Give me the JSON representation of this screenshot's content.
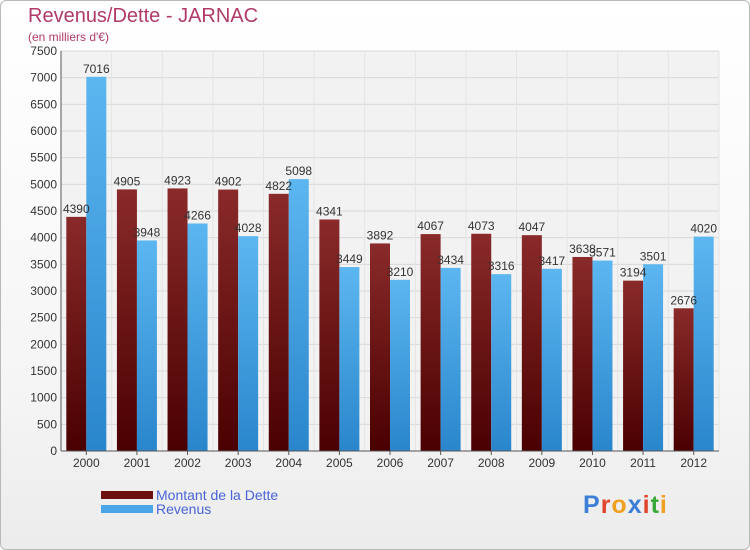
{
  "header": {
    "title": "Revenus/Dette - JARNAC",
    "subtitle": "(en milliers d'€)"
  },
  "chart_data": {
    "type": "bar",
    "title": "Revenus/Dette - JARNAC",
    "ylabel": "(en milliers d'€)",
    "xlabel": "",
    "categories": [
      "2000",
      "2001",
      "2002",
      "2003",
      "2004",
      "2005",
      "2006",
      "2007",
      "2008",
      "2009",
      "2010",
      "2011",
      "2012"
    ],
    "series": [
      {
        "name": "Montant de la Dette",
        "color": "#7a1c1c",
        "values": [
          4390,
          4905,
          4923,
          4902,
          4822,
          4341,
          3892,
          4067,
          4073,
          4047,
          3638,
          3194,
          2676
        ],
        "labels": [
          "4390",
          "4905",
          "4923",
          "4902",
          "4822",
          "4341",
          "3892",
          "4067",
          "4073",
          "4047",
          "3638",
          "3194",
          "2676"
        ]
      },
      {
        "name": "Revenus",
        "color": "#4aa6e6",
        "values": [
          7016,
          3948,
          4266,
          4028,
          5098,
          3449,
          3210,
          3434,
          3316,
          3417,
          3571,
          3501,
          4020
        ],
        "labels": [
          "7016",
          "3948",
          "4266",
          "4028",
          "5098",
          "3449",
          "3210",
          "3434",
          "3316",
          "3417",
          "3571",
          "3501",
          "4020"
        ]
      }
    ],
    "ylim": [
      0,
      7500
    ],
    "yticks": [
      0,
      500,
      1000,
      1500,
      2000,
      2500,
      3000,
      3500,
      4000,
      4500,
      5000,
      5500,
      6000,
      6500,
      7000,
      7500
    ],
    "grid": true,
    "legend": "bottom-left"
  },
  "legend": {
    "items": [
      {
        "label": "Montant de la Dette",
        "color": "#6b0f0f"
      },
      {
        "label": "Revenus",
        "color": "#4aa6e6"
      }
    ]
  },
  "logo": {
    "letters": [
      "P",
      "r",
      "o",
      "x",
      "i",
      "t",
      "i"
    ],
    "colors": [
      "#3d7fd6",
      "#e0462f",
      "#f0a020",
      "#3d7fd6",
      "#e0462f",
      "#38a838",
      "#f0a020"
    ]
  }
}
